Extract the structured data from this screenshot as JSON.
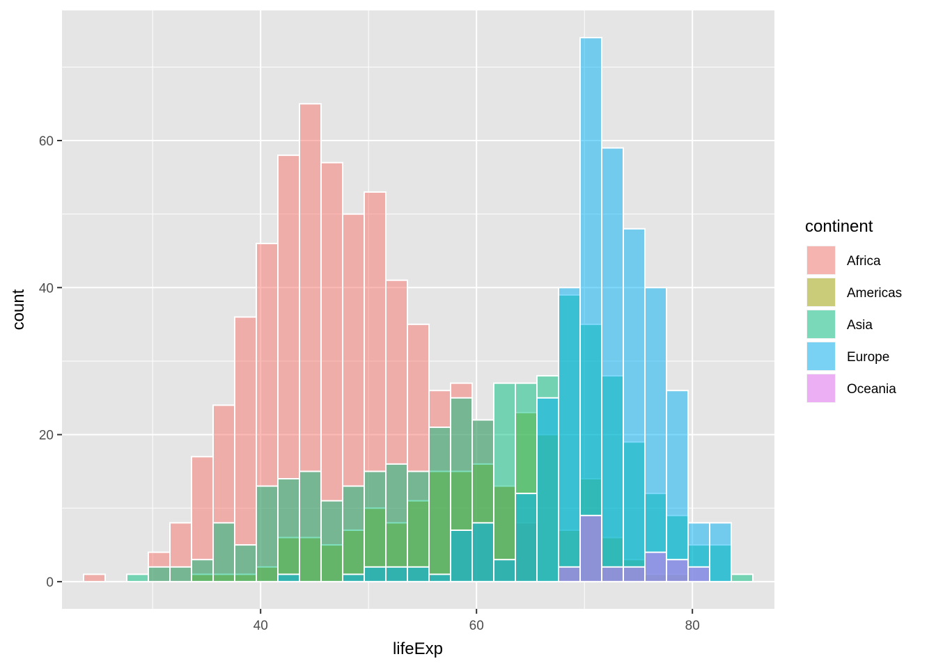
{
  "chart_data": {
    "type": "bar",
    "subtype": "histogram",
    "position": "identity",
    "alpha": 0.5,
    "title": "",
    "xlabel": "lifeExp",
    "ylabel": "count",
    "bin_width": 2.0,
    "bin_centers": [
      24.6,
      26.6,
      28.6,
      30.6,
      32.6,
      34.6,
      36.6,
      38.6,
      40.6,
      42.6,
      44.6,
      46.6,
      48.6,
      50.6,
      52.6,
      54.6,
      56.6,
      58.6,
      60.6,
      62.6,
      64.6,
      66.6,
      68.6,
      70.6,
      72.6,
      74.6,
      76.6,
      78.6,
      80.6,
      82.6,
      84.6
    ],
    "xlim": [
      21.6,
      87.6
    ],
    "ylim": [
      -3.7,
      77.7
    ],
    "x_ticks": [
      40,
      60,
      80
    ],
    "y_ticks": [
      0,
      20,
      40,
      60
    ],
    "grid": true,
    "legend": {
      "title": "continent",
      "position": "right"
    },
    "series": [
      {
        "name": "Africa",
        "color": "#F8766D",
        "values": [
          1,
          0,
          0,
          4,
          8,
          17,
          24,
          36,
          46,
          58,
          65,
          57,
          50,
          53,
          41,
          35,
          26,
          27,
          22,
          13,
          8,
          0,
          0,
          0,
          0,
          0,
          0,
          0,
          0,
          0,
          0
        ]
      },
      {
        "name": "Americas",
        "color": "#A3A500",
        "values": [
          0,
          0,
          0,
          0,
          0,
          1,
          1,
          1,
          2,
          6,
          6,
          5,
          7,
          10,
          8,
          11,
          15,
          15,
          16,
          13,
          23,
          20,
          7,
          14,
          6,
          3,
          1,
          1,
          0,
          0,
          0
        ]
      },
      {
        "name": "Asia",
        "color": "#00BF7D",
        "values": [
          0,
          0,
          1,
          2,
          2,
          3,
          8,
          5,
          13,
          14,
          15,
          11,
          13,
          15,
          16,
          15,
          21,
          25,
          22,
          27,
          27,
          28,
          39,
          35,
          28,
          19,
          12,
          9,
          5,
          5,
          1
        ]
      },
      {
        "name": "Europe",
        "color": "#00B0F6",
        "values": [
          0,
          0,
          0,
          0,
          0,
          0,
          0,
          0,
          0,
          1,
          0,
          0,
          1,
          2,
          2,
          2,
          1,
          7,
          8,
          3,
          12,
          25,
          40,
          74,
          59,
          48,
          40,
          26,
          8,
          8,
          0
        ]
      },
      {
        "name": "Oceania",
        "color": "#E76BF3",
        "values": [
          0,
          0,
          0,
          0,
          0,
          0,
          0,
          0,
          0,
          0,
          0,
          0,
          0,
          0,
          0,
          0,
          0,
          0,
          0,
          0,
          0,
          0,
          2,
          9,
          2,
          2,
          4,
          3,
          2,
          0,
          0
        ]
      }
    ]
  },
  "colors": {
    "panel_bg": "#E5E5E5",
    "grid": "#FFFFFF",
    "bar_outline": "#FFFFFF",
    "tick_text": "#4D4D4D"
  }
}
